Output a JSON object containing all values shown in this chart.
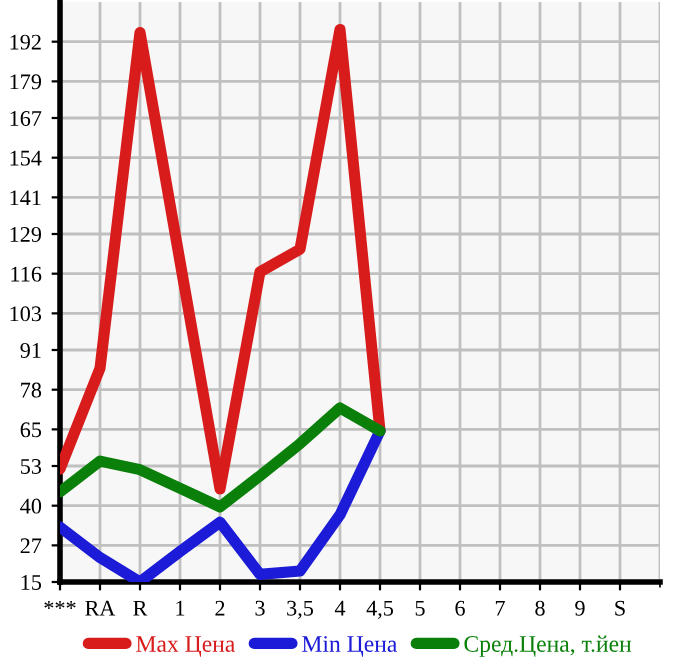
{
  "chart_data": {
    "type": "line",
    "categories": [
      "***",
      "RA",
      "R",
      "1",
      "2",
      "3",
      "3,5",
      "4",
      "4,5",
      "5",
      "6",
      "7",
      "8",
      "9",
      "S"
    ],
    "series": [
      {
        "name": "Max Цена",
        "color": "#d81c1c",
        "values": [
          52,
          85,
          195,
          120,
          45.5,
          116.6,
          124,
          196,
          64.5,
          null,
          null,
          null,
          null,
          null,
          null
        ]
      },
      {
        "name": "Min Цена",
        "color": "#1c1cd8",
        "values": [
          33,
          23,
          15,
          25,
          34.6,
          17.5,
          18.6,
          37,
          64.5,
          null,
          null,
          null,
          null,
          null,
          null
        ]
      },
      {
        "name": "Сред.Цена, т.йен",
        "color": "#0a800a",
        "values": [
          44.5,
          54.6,
          51.8,
          45.7,
          39.6,
          49.8,
          60.3,
          72,
          64.5,
          null,
          null,
          null,
          null,
          null,
          null
        ]
      }
    ],
    "ylim": [
      15,
      205
    ],
    "yticks": [
      15,
      27,
      40,
      53,
      65,
      78,
      91,
      103,
      116,
      129,
      141,
      154,
      167,
      179,
      192
    ],
    "grid": true,
    "legend": "bottom",
    "marker": "none",
    "line_style": "solid"
  }
}
